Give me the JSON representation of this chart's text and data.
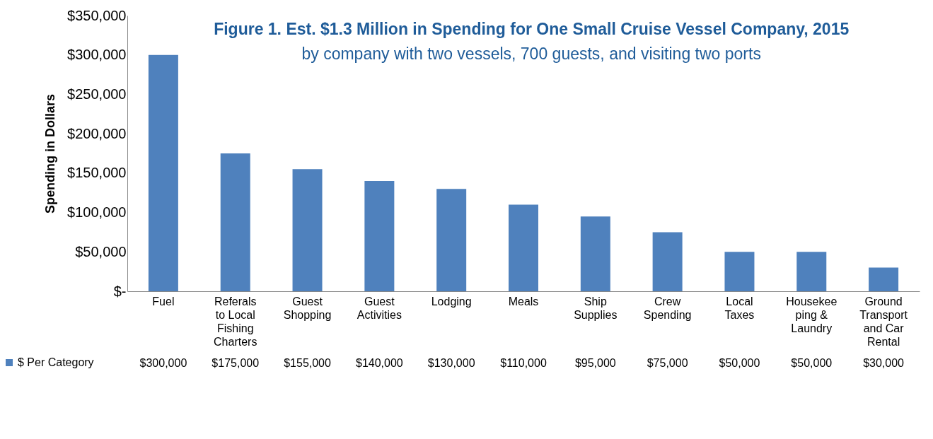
{
  "chart_data": {
    "type": "bar",
    "title": "Figure 1. Est. $1.3 Million in Spending for One Small Cruise Vessel Company, 2015",
    "subtitle": "by company with two vessels, 700 guests, and visiting two ports",
    "ylabel": "Spending in Dollars",
    "categories": [
      "Fuel",
      "Referals\nto Local\nFishing\nCharters",
      "Guest\nShopping",
      "Guest\nActivities",
      "Lodging",
      "Meals",
      "Ship\nSupplies",
      "Crew\nSpending",
      "Local\nTaxes",
      "Housekee\nping &\nLaundry",
      "Ground\nTransport\nand Car\nRental"
    ],
    "series": [
      {
        "name": "$ Per Category",
        "color": "#4f81bd",
        "values": [
          300000,
          175000,
          155000,
          140000,
          130000,
          110000,
          95000,
          75000,
          50000,
          50000,
          30000
        ]
      }
    ],
    "value_labels": [
      "$300,000",
      "$175,000",
      "$155,000",
      "$140,000",
      "$130,000",
      "$110,000",
      "$95,000",
      "$75,000",
      "$50,000",
      "$50,000",
      "$30,000"
    ],
    "ylim": [
      0,
      350000
    ],
    "yticks": [
      {
        "value": 0,
        "label": "$-"
      },
      {
        "value": 50000,
        "label": "$50,000"
      },
      {
        "value": 100000,
        "label": "$100,000"
      },
      {
        "value": 150000,
        "label": "$150,000"
      },
      {
        "value": 200000,
        "label": "$200,000"
      },
      {
        "value": 250000,
        "label": "$250,000"
      },
      {
        "value": 300000,
        "label": "$300,000"
      },
      {
        "value": 350000,
        "label": "$350,000"
      }
    ],
    "grid": false,
    "legend": "bottom left"
  }
}
